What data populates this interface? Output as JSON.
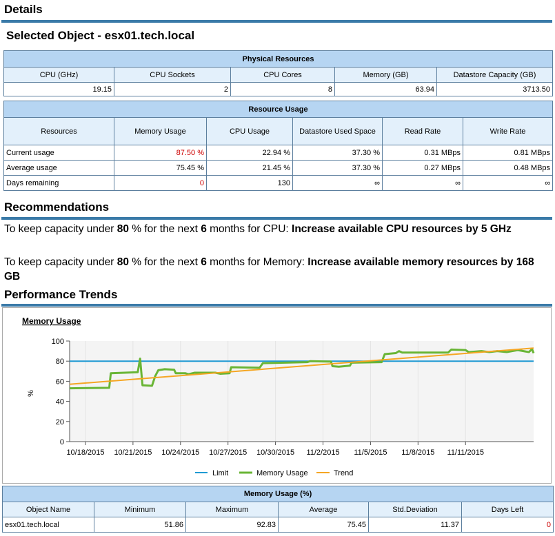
{
  "details": {
    "title": "Details",
    "selected_object": "Selected Object - esx01.tech.local"
  },
  "physical": {
    "caption": "Physical Resources",
    "headers": [
      "CPU (GHz)",
      "CPU Sockets",
      "CPU Cores",
      "Memory (GB)",
      "Datastore Capacity (GB)"
    ],
    "values": [
      "19.15",
      "2",
      "8",
      "63.94",
      "3713.50"
    ]
  },
  "usage": {
    "caption": "Resource Usage",
    "headers": [
      "Resources",
      "Memory Usage",
      "CPU Usage",
      "Datastore Used Space",
      "Read Rate",
      "Write Rate"
    ],
    "rows": [
      [
        "Current usage",
        "87.50 %",
        "22.94 %",
        "37.30 %",
        "0.31 MBps",
        "0.81 MBps"
      ],
      [
        "Average usage",
        "75.45 %",
        "21.45 %",
        "37.30 %",
        "0.27 MBps",
        "0.48 MBps"
      ],
      [
        "Days remaining",
        "0",
        "130",
        "∞",
        "∞",
        "∞"
      ]
    ]
  },
  "recommendations": {
    "title": "Recommendations",
    "cpu": {
      "p1": "To keep capacity under ",
      "pct": "80",
      "p2": " % for the next ",
      "months": "6",
      "p3": " months for CPU: ",
      "action": "Increase available CPU resources by 5 GHz"
    },
    "memory": {
      "p1": "To keep capacity under ",
      "pct": "80",
      "p2": " % for the next ",
      "months": "6",
      "p3": " months for Memory: ",
      "action": "Increase available memory resources by 168 GB"
    }
  },
  "trends": {
    "title": "Performance Trends"
  },
  "colors": {
    "accent": "#3a7aa8",
    "header_bg": "#b6d5f2",
    "subheader_bg": "#e3f0fb",
    "limit": "#1f9ad3",
    "memory": "#69b535",
    "trend": "#f5a623",
    "alert": "#cc0000"
  },
  "chart_data": {
    "type": "line",
    "title": "Memory Usage",
    "ylabel": "%",
    "ylim": [
      0,
      100
    ],
    "yticks": [
      "0",
      "20",
      "40",
      "60",
      "80",
      "100"
    ],
    "xlim": [
      0,
      29.3
    ],
    "xticks": [
      {
        "x": 1,
        "label": "10/18/2015"
      },
      {
        "x": 4,
        "label": "10/21/2015"
      },
      {
        "x": 7,
        "label": "10/24/2015"
      },
      {
        "x": 10,
        "label": "10/27/2015"
      },
      {
        "x": 13,
        "label": "10/30/2015"
      },
      {
        "x": 16,
        "label": "11/2/2015"
      },
      {
        "x": 19,
        "label": "11/5/2015"
      },
      {
        "x": 22,
        "label": "11/8/2015"
      },
      {
        "x": 25,
        "label": "11/11/2015"
      }
    ],
    "legend": [
      "Limit",
      "Memory Usage",
      "Trend"
    ],
    "limit": 80,
    "trend": [
      [
        0,
        57
      ],
      [
        29.3,
        93
      ]
    ],
    "memory_usage": [
      [
        0,
        53
      ],
      [
        2.5,
        53.5
      ],
      [
        2.6,
        68
      ],
      [
        4.3,
        69
      ],
      [
        4.45,
        82.5
      ],
      [
        4.6,
        56
      ],
      [
        5.2,
        55.5
      ],
      [
        5.4,
        65
      ],
      [
        5.6,
        71
      ],
      [
        6.0,
        72
      ],
      [
        6.6,
        71.5
      ],
      [
        6.7,
        68
      ],
      [
        7.3,
        68
      ],
      [
        7.5,
        67
      ],
      [
        7.9,
        68.5
      ],
      [
        9.2,
        68.5
      ],
      [
        9.5,
        67.5
      ],
      [
        10.1,
        68
      ],
      [
        10.2,
        74
      ],
      [
        12.0,
        73.5
      ],
      [
        12.2,
        78
      ],
      [
        15.0,
        79
      ],
      [
        15.2,
        80
      ],
      [
        16.5,
        79.5
      ],
      [
        16.6,
        75
      ],
      [
        17.0,
        74.5
      ],
      [
        17.7,
        75.5
      ],
      [
        17.8,
        78.5
      ],
      [
        19.7,
        79
      ],
      [
        19.9,
        87
      ],
      [
        20.6,
        88
      ],
      [
        20.8,
        90
      ],
      [
        21.0,
        88.5
      ],
      [
        23.9,
        88.5
      ],
      [
        24.1,
        91.5
      ],
      [
        25.0,
        91
      ],
      [
        25.2,
        89
      ],
      [
        26.0,
        90
      ],
      [
        26.5,
        89
      ],
      [
        27.0,
        90
      ],
      [
        27.6,
        89
      ],
      [
        28.3,
        91
      ],
      [
        29.0,
        89
      ],
      [
        29.2,
        92
      ],
      [
        29.3,
        88
      ]
    ]
  },
  "stats": {
    "caption": "Memory Usage (%)",
    "headers": [
      "Object Name",
      "Minimum",
      "Maximum",
      "Average",
      "Std.Deviation",
      "Days Left"
    ],
    "row": [
      "esx01.tech.local",
      "51.86",
      "92.83",
      "75.45",
      "11.37",
      "0"
    ]
  }
}
